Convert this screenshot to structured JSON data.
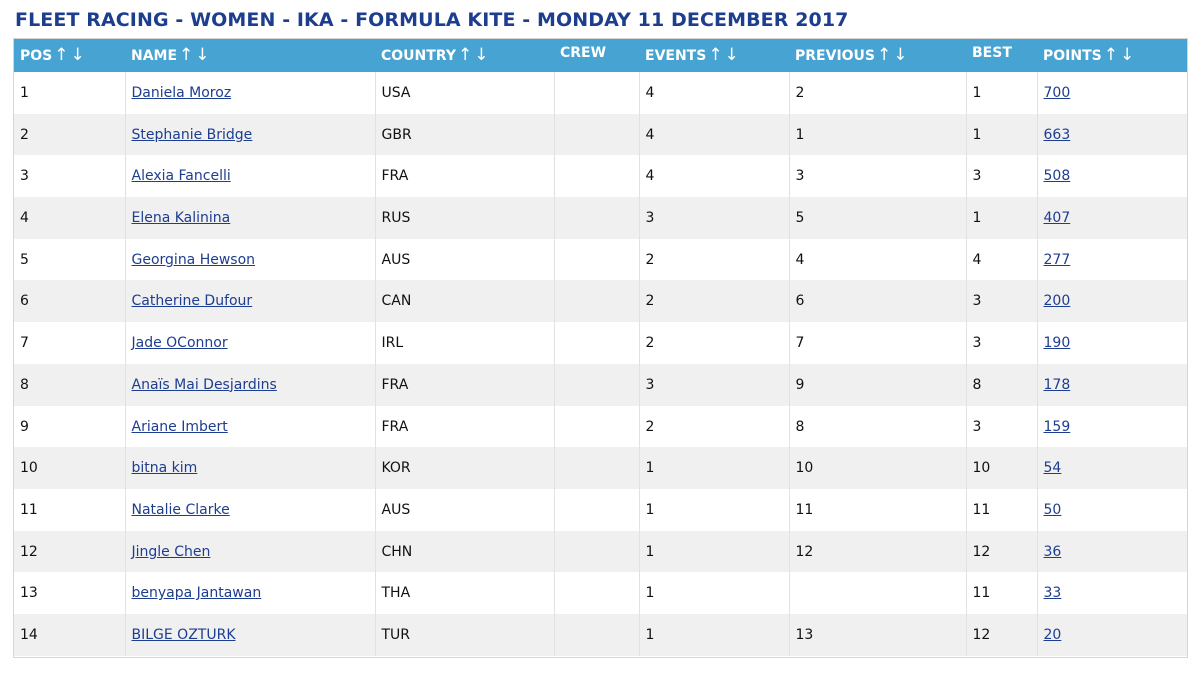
{
  "title": "FLEET RACING - WOMEN - IKA - FORMULA KITE - MONDAY 11 DECEMBER 2017",
  "headers": {
    "pos": "POS",
    "name": "NAME",
    "country": "COUNTRY",
    "crew": "CREW",
    "events": "EVENTS",
    "previous": "PREVIOUS",
    "best": "BEST",
    "points": "POINTS",
    "sort_arrows": "↑↓"
  },
  "rows": [
    {
      "pos": "1",
      "name": "Daniela Moroz",
      "country": "USA",
      "crew": "",
      "events": "4",
      "previous": "2",
      "best": "1",
      "points": "700"
    },
    {
      "pos": "2",
      "name": "Stephanie Bridge",
      "country": "GBR",
      "crew": "",
      "events": "4",
      "previous": "1",
      "best": "1",
      "points": "663"
    },
    {
      "pos": "3",
      "name": "Alexia Fancelli",
      "country": "FRA",
      "crew": "",
      "events": "4",
      "previous": "3",
      "best": "3",
      "points": "508"
    },
    {
      "pos": "4",
      "name": "Elena Kalinina",
      "country": "RUS",
      "crew": "",
      "events": "3",
      "previous": "5",
      "best": "1",
      "points": "407"
    },
    {
      "pos": "5",
      "name": "Georgina Hewson",
      "country": "AUS",
      "crew": "",
      "events": "2",
      "previous": "4",
      "best": "4",
      "points": "277"
    },
    {
      "pos": "6",
      "name": "Catherine Dufour",
      "country": "CAN",
      "crew": "",
      "events": "2",
      "previous": "6",
      "best": "3",
      "points": "200"
    },
    {
      "pos": "7",
      "name": "Jade OConnor",
      "country": "IRL",
      "crew": "",
      "events": "2",
      "previous": "7",
      "best": "3",
      "points": "190"
    },
    {
      "pos": "8",
      "name": "Anaïs Mai Desjardins",
      "country": "FRA",
      "crew": "",
      "events": "3",
      "previous": "9",
      "best": "8",
      "points": "178"
    },
    {
      "pos": "9",
      "name": "Ariane Imbert",
      "country": "FRA",
      "crew": "",
      "events": "2",
      "previous": "8",
      "best": "3",
      "points": "159"
    },
    {
      "pos": "10",
      "name": "bitna kim",
      "country": "KOR",
      "crew": "",
      "events": "1",
      "previous": "10",
      "best": "10",
      "points": "54"
    },
    {
      "pos": "11",
      "name": "Natalie Clarke",
      "country": "AUS",
      "crew": "",
      "events": "1",
      "previous": "11",
      "best": "11",
      "points": "50"
    },
    {
      "pos": "12",
      "name": "Jingle Chen",
      "country": "CHN",
      "crew": "",
      "events": "1",
      "previous": "12",
      "best": "12",
      "points": "36"
    },
    {
      "pos": "13",
      "name": "benyapa Jantawan",
      "country": "THA",
      "crew": "",
      "events": "1",
      "previous": "",
      "best": "11",
      "points": "33"
    },
    {
      "pos": "14",
      "name": "BILGE OZTURK",
      "country": "TUR",
      "crew": "",
      "events": "1",
      "previous": "13",
      "best": "12",
      "points": "20"
    }
  ]
}
